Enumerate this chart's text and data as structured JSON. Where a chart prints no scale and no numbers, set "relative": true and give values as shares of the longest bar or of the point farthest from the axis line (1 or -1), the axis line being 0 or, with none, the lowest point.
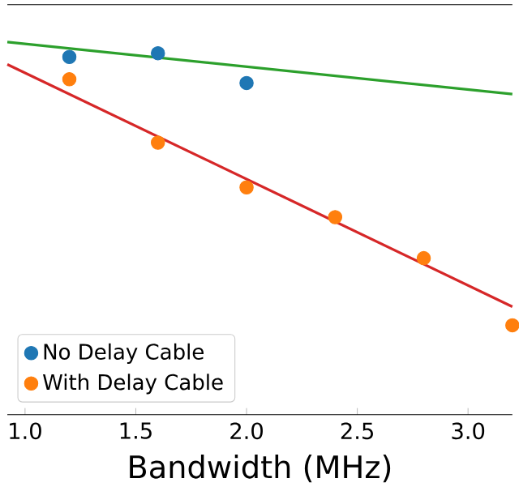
{
  "chart_data": {
    "type": "scatter",
    "xlabel": "Bandwidth (MHz)",
    "relative": true,
    "xlim": [
      0.92,
      3.2
    ],
    "xticks": [
      {
        "value": 1,
        "label": "1.0"
      },
      {
        "value": 1.5,
        "label": "1.5"
      },
      {
        "value": 2,
        "label": "2.0"
      },
      {
        "value": 2.5,
        "label": "2.5"
      },
      {
        "value": 3,
        "label": "3.0"
      }
    ],
    "legend": "bottom left",
    "marker": "circle",
    "series": [
      {
        "name": "No Delay Cable",
        "color": "#1f77b4",
        "x": [
          1.2,
          1.6,
          2.0
        ],
        "values": [
          0.96,
          0.97,
          0.89
        ]
      },
      {
        "name": "With Delay Cable",
        "color": "#ff7f0e",
        "x": [
          1.2,
          1.6,
          2.0,
          2.4,
          2.8,
          3.2
        ],
        "values": [
          0.9,
          0.73,
          0.61,
          0.53,
          0.42,
          0.24
        ]
      },
      {
        "type": "line",
        "marker": "none",
        "color": "#2ca02c",
        "x": [
          0.92,
          3.2
        ],
        "values": [
          1.0,
          0.86
        ]
      },
      {
        "type": "line",
        "marker": "none",
        "color": "#d62728",
        "x": [
          0.92,
          3.2
        ],
        "values": [
          0.94,
          0.29
        ]
      }
    ]
  }
}
